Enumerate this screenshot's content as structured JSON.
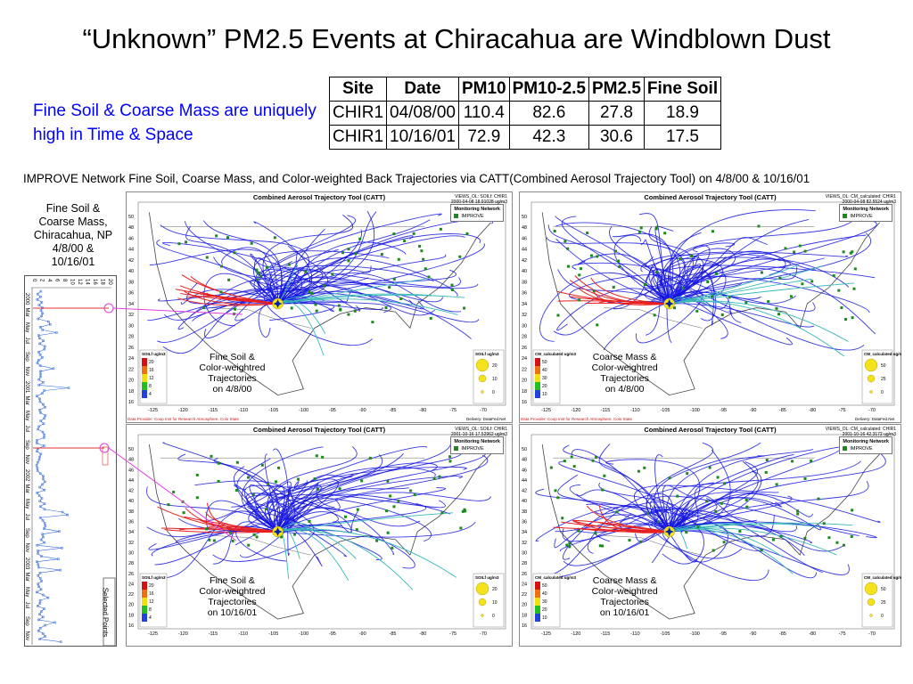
{
  "title": "“Unknown” PM2.5  Events at Chiracahua are Windblown Dust",
  "subtitle": "Fine Soil & Coarse Mass are uniquely high in Time & Space",
  "table": {
    "headers": [
      "Site",
      "Date",
      "PM10",
      "PM10-2.5",
      "PM2.5",
      "Fine Soil"
    ],
    "rows": [
      [
        "CHIR1",
        "04/08/00",
        "110.4",
        "82.6",
        "27.8",
        "18.9"
      ],
      [
        "CHIR1",
        "10/16/01",
        "72.9",
        "42.3",
        "30.6",
        "17.5"
      ]
    ]
  },
  "figure_caption": "IMPROVE Network Fine Soil, Coarse Mass, and Color-weighted Back Trajectories via CATT(Combined  Aerosol Trajectory Tool) on 4/8/00 & 10/16/01",
  "left_label": [
    "Fine Soil &",
    "Coarse Mass,",
    "Chiracahua, NP",
    "4/8/00 &",
    "10/16/01"
  ],
  "timeseries": {
    "axis_values": [
      "0",
      "2",
      "4",
      "6",
      "8",
      "10",
      "12",
      "14",
      "16",
      "18",
      "20"
    ],
    "time_labels": [
      "2000",
      "Mar",
      "May",
      "Jul",
      "Sep",
      "Nov",
      "2001",
      "Mar",
      "May",
      "Jul",
      "Sep",
      "Nov",
      "2002",
      "Mar",
      "May",
      "Jul",
      "Sep",
      "Nov",
      "2003",
      "Mar",
      "May",
      "Jul",
      "Sep",
      "Nov"
    ],
    "selected_points_label": "Selected Points"
  },
  "panels": [
    {
      "title": "Combined Aerosol Trajectory Tool (CATT)",
      "info": [
        "VIEWS_OL: SOILf: CHIR1",
        "2000-04-08 18.91028 ug/m3"
      ],
      "network": [
        "Monitoring Network",
        "IMPROVE"
      ],
      "label": [
        "Fine Soil &",
        "Color-weightred",
        "Trajectories",
        "on 4/8/00"
      ],
      "legend_title": "SOILf ug/m3",
      "legend_values": [
        "20",
        "16",
        "12",
        "8",
        "4"
      ],
      "size_title": "SOILf ug/m3",
      "size_values": [
        "20",
        "10",
        "0"
      ],
      "footer_left": "Data Provider: Coop Inst for Research Atmosphere, Colo State",
      "footer_right": "Delivery: DataFed.Net",
      "colors": {
        "trajectory": "#1515e0",
        "hot": "#e8201e",
        "mid": "#36b8b8"
      }
    },
    {
      "title": "Combined Aerosol Trajectory Tool (CATT)",
      "info": [
        "VIEWS_OL: CM_calculated: CHIR1",
        "2000-04-08 82.5524 ug/m3"
      ],
      "network": [
        "Monitoring Network",
        "IMPROVE"
      ],
      "label": [
        "Coarse Mass &",
        "Color-weightred",
        "Trajectories",
        "on 4/8/00"
      ],
      "legend_title": "CM_calculated ug/m3",
      "legend_values": [
        "50",
        "40",
        "30",
        "20",
        "10"
      ],
      "size_title": "CM_calculated ug/m3",
      "size_values": [
        "50",
        "25",
        "0"
      ],
      "footer_left": "Data Provider: Coop Inst for Research Atmosphere, Colo State",
      "footer_right": "Delivery: DataFed.Net",
      "colors": {
        "trajectory": "#1515e0",
        "hot": "#e8201e",
        "mid": "#36b8b8"
      }
    },
    {
      "title": "Combined Aerosol Trajectory Tool (CATT)",
      "info": [
        "VIEWS_OL: SOILf: CHIR1",
        "2001-10-16 17.52962 ug/m3"
      ],
      "network": [
        "Monitoring Network",
        "IMPROVE"
      ],
      "label": [
        "Fine Soil &",
        "Color-weightred",
        "Trajectories",
        "on 10/16/01"
      ],
      "legend_title": "SOILf ug/m3",
      "legend_values": [
        "20",
        "16",
        "12",
        "8",
        "4"
      ],
      "size_title": "SOILf ug/m3",
      "size_values": [
        "20",
        "10",
        "0"
      ],
      "footer_left": "",
      "footer_right": "",
      "colors": {
        "trajectory": "#1515e0",
        "hot": "#e8201e",
        "mid": "#36b8b8"
      }
    },
    {
      "title": "Combined Aerosol Trajectory Tool (CATT)",
      "info": [
        "VIEWS_OL: CM_calculated: CHIR1",
        "2001-10-16 42.3172 ug/m3"
      ],
      "network": [
        "Monitoring Network",
        "IMPROVE"
      ],
      "label": [
        "Coarse Mass &",
        "Color-weightred",
        "Trajectories",
        "on 10/16/01"
      ],
      "legend_title": "CM_calculated ug/m3",
      "legend_values": [
        "50",
        "40",
        "30",
        "20",
        "10"
      ],
      "size_title": "CM_calculated ug/m3",
      "size_values": [
        "50",
        "25",
        "0"
      ],
      "footer_left": "",
      "footer_right": "",
      "colors": {
        "trajectory": "#1515e0",
        "hot": "#e8201e",
        "mid": "#36b8b8"
      }
    }
  ],
  "map_axes": {
    "lat_ticks": [
      "50",
      "48",
      "46",
      "44",
      "42",
      "40",
      "38",
      "36",
      "34",
      "32",
      "30",
      "28",
      "26",
      "24",
      "22",
      "20",
      "18",
      "16"
    ],
    "lon_ticks": [
      "-125",
      "-120",
      "-115",
      "-110",
      "-105",
      "-100",
      "-95",
      "-90",
      "-85",
      "-80",
      "-75",
      "-70"
    ]
  },
  "colors": {
    "title": "#000000",
    "subtitle": "#0000ff",
    "ts_marker": "#3a6fd8",
    "ts_highlight": "#e03030",
    "callout": "#e040e0",
    "site_marker": "#1a8a1a",
    "site_star": "#0022aa",
    "highlight_dot": "#f3e21c"
  }
}
